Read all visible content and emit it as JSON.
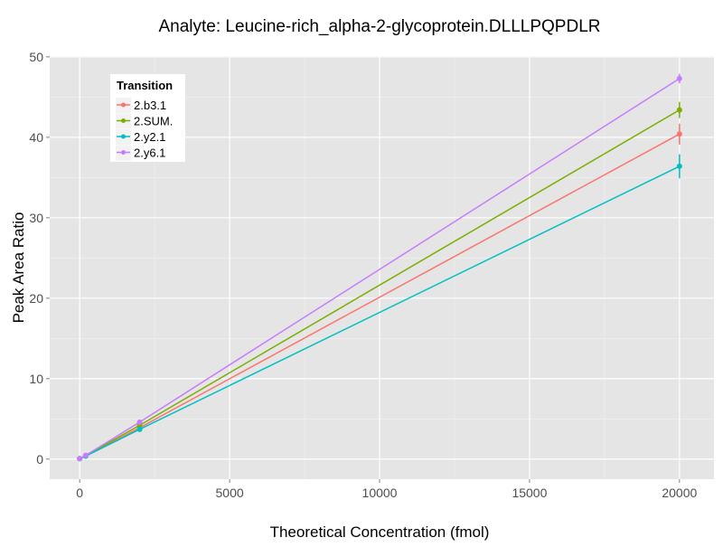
{
  "chart_data": {
    "type": "line",
    "title": "Analyte: Leucine-rich_alpha-2-glycoprotein.DLLLPQPDLR",
    "xlabel": "Theoretical Concentration (fmol)",
    "ylabel": "Peak Area Ratio",
    "xlim": [
      -1000,
      21150
    ],
    "ylim": [
      -2.5,
      50.1
    ],
    "xticks": [
      0,
      5000,
      10000,
      15000,
      20000
    ],
    "xtick_labels": [
      "0",
      "5000",
      "10000",
      "15000",
      "20000"
    ],
    "yticks": [
      0,
      10,
      20,
      30,
      40,
      50
    ],
    "ytick_labels": [
      "0",
      "10",
      "20",
      "30",
      "40",
      "50"
    ],
    "grid": true,
    "legend": {
      "title": "Transition",
      "placement": "top-left"
    },
    "x": [
      0,
      200,
      2000,
      20000
    ],
    "series": [
      {
        "name": "2.b3.1",
        "color": "#F8766D",
        "values": [
          0.05,
          0.4,
          3.9,
          40.4
        ],
        "errors": [
          0,
          0,
          0.1,
          1.3
        ]
      },
      {
        "name": "2.SUM.",
        "color": "#7CAE00",
        "values": [
          0.05,
          0.43,
          4.2,
          43.4
        ],
        "errors": [
          0,
          0,
          0.1,
          1.0
        ]
      },
      {
        "name": "2.y2.1",
        "color": "#00BFC4",
        "values": [
          0.05,
          0.37,
          3.7,
          36.4
        ],
        "errors": [
          0,
          0,
          0.1,
          1.5
        ]
      },
      {
        "name": "2.y6.1",
        "color": "#C77CFF",
        "values": [
          0.05,
          0.46,
          4.6,
          47.3
        ],
        "errors": [
          0,
          0,
          0.1,
          0.6
        ]
      }
    ]
  }
}
